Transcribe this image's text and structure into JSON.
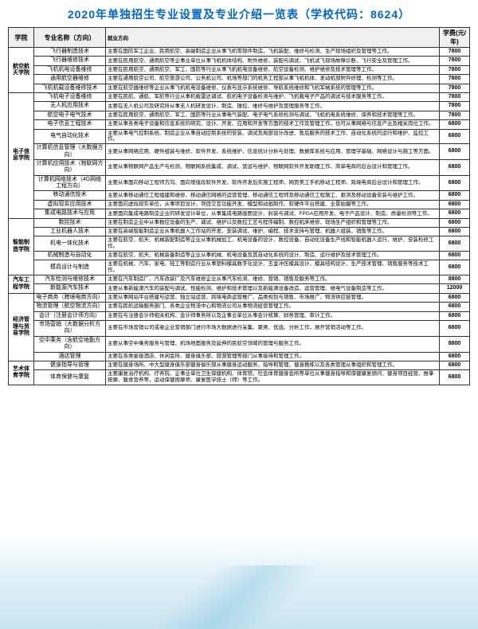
{
  "title": "2020年单独招生专业设置及专业介绍一览表（学校代码：8624）",
  "headers": {
    "college": "学院",
    "major": "专业名称（方向）",
    "desc": "就业方向",
    "fee": "学费(元/年)"
  },
  "colleges": [
    {
      "name": "航空航天学院",
      "rows": [
        {
          "major": "飞行器制造技术",
          "desc": "主要在国防军工企业、民用航空、高端制造企业从事飞机零部件制造，飞机装配、维修与检测、生产现场组织及管理等工作。",
          "fee": "7800"
        },
        {
          "major": "飞行器维修技术",
          "desc": "主要在民用航空、通用航空等企事业单位从事飞机机体结构、附件维修、装配与调试、飞机试飞现场故障诊断、飞行安全及管理工作。",
          "fee": "7800"
        },
        {
          "major": "飞机机电设备维修",
          "desc": "主要在民用航空、通用航空、军工、国防等行业从事飞机机电设备维修、航空设备检测、维护维修及技术管理等工作。",
          "fee": "7800"
        },
        {
          "major": "通用航空器维修",
          "desc": "主要在通用航空公司、航空旅游公司、公务机公司、机场等部门的机务工程部从事飞机机体、发动机部附件修理、检测等工作。",
          "fee": "7800"
        },
        {
          "major": "飞机机载设备维修技术",
          "desc": "主要在航空器维修等企业从事飞机机电设备维修、仪表与显示系统维修、导航系统维修和飞机军械系统的管理等工作。",
          "fee": "7800"
        }
      ]
    },
    {
      "name": "电子信息学院",
      "rows": [
        {
          "major": "飞机电子设备维修",
          "desc": "主要在民航、通航、军航等行业从事机载雷达调试、航机电子设备检测与维护、飞机载电子产品的调试与技术服务等工作。",
          "fee": "7800"
        },
        {
          "major": "无人机应用技术",
          "desc": "主要在无人机公司及研究所从事无人机研发设计、制造、操控、维修与维护及管理服务等工作。",
          "fee": "7800"
        },
        {
          "major": "航空电子电气技术",
          "desc": "主要在民用航空、通用航空、军工、国防等行业从事电气装配、电子电气系统检测与调试、飞机机电系统维修、保养和技术管理等工作。",
          "fee": "7800"
        },
        {
          "major": "电子信息工程技术",
          "desc": "主要从事各类电子设备和信息系统的研究、设计、开发、应用和开发等方面的技术工作及管理工作，也可从事网络与信息产业及相关岗位工作。",
          "fee": "6800"
        },
        {
          "major": "电气自动化技术",
          "desc": "主要从事电气控制系统、制造企业从事自动控制系统的安装、调试及局部设计改进、售后服务的技术工作、自动化系统的运行和维护、监控工作。",
          "fee": "6800"
        },
        {
          "major": "计算机信息管理（大数据方向）",
          "desc": "主要从事网络应用、硬件组装与维修、软件开发、系统维护、信息统计分析与处理、数据库系统与应用、管理学基础、网络设计与施工等方面。",
          "fee": "6800"
        },
        {
          "major": "计算机应用技术（物联网方向）",
          "desc": "主要从事物联网产品生产与检测、物联网系统集成、调试、营运与维护、物联网软件开发助理工作、简单电商的后台设计和管理工作。",
          "fee": "6800"
        },
        {
          "major": "计算机网络技术（4G网络工程方向）",
          "desc": "主要从事面向移动工程师方向、面向增值段软件开发、软件开发后实施工程师、网页美工手机移动工程师、跨境电商后台设计和管理工作。",
          "fee": "6800"
        },
        {
          "major": "移动通信技术",
          "desc": "主要从事移动通信工程组建和维修、移动通信网络的运营管理、移动通信工程师及移动通信工程施工、跟测及移动设备安装与维护工作。",
          "fee": "6800"
        },
        {
          "major": "虚拟现实应用技术",
          "desc": "主要面向虚拟现实单位，从事项目设计、项目交互功能开发、模型和动画制作、软硬件平台搭建、全景拍摄等工作。",
          "fee": "6800"
        },
        {
          "major": "集成电路技术与应用",
          "desc": "主要面向集成电路制造企业的研发设计单位，从事集成电路版图设计、封装与调试、FPGA应用开发、电子产品设计、制造、质量检测等工作。",
          "fee": "6800"
        }
      ]
    },
    {
      "name": "智能制造学院",
      "rows": [
        {
          "major": "数控技术",
          "desc": "主要在制造企业中从事数控设备的生产、调试、维护以及数控工艺与程序编制、数控机床维修、现场生产组织和管理等工作。",
          "fee": "6800"
        },
        {
          "major": "工业机器人技术",
          "desc": "主要在高端智能制造企业从事机器人工作站的开发、安装调试、维护、编程、技术支持与管理、机器人组装、销售等工作。",
          "fee": "6800"
        },
        {
          "major": "机电一体化技术",
          "desc": "主要在航空、航天、机械装配制造等企业从事机械加工、机电设备的设计、数控设备、自动化设备生产线和智能机器人运行、维护、安装检修工作。",
          "fee": "6800"
        },
        {
          "major": "机械制造与自动化",
          "desc": "主要在航空、航天、机械装备制造等企业从事机械、机电设备及其自动化系统的设计、制造、运行维护及技术管理工作。",
          "fee": "6800"
        },
        {
          "major": "模具设计与制造",
          "desc": "主要在机械、汽车、家电、轻工等制造行业从事塑料模具数字化设计、五金冲压模具设计、模具结构设计、生产技术管理、销售服务等技术工作。",
          "fee": "6800"
        }
      ]
    },
    {
      "name": "汽车工程学院",
      "rows": [
        {
          "major": "汽车检测与维修技术",
          "desc": "主要在汽车制造厂、汽车改装厂及汽车维修企业从事汽车检测、维修、营销、销售及服务等工作。",
          "fee": "8800"
        },
        {
          "major": "新能源汽车技术",
          "desc": "主要从事新能源汽车的装配与调试、性能检测、维护和技术管理以及新能源设备改造、运营管理、维电气设备制造等工作。",
          "fee": "12000"
        }
      ]
    },
    {
      "name": "经济管理与贸易学院",
      "rows": [
        {
          "major": "电子商务（跨境电商方向）",
          "desc": "主要从事网站平台搭建与运营、独立站运营、跨境电商运营推广、品类规划与销售、市场推广、物流供应链管理。",
          "fee": "6800"
        },
        {
          "major": "物流管理（航空物流方向）",
          "desc": "主要在民航运输服务部门、各类企业物流中心和物流公司从事物流经营管理工作。",
          "fee": "6800"
        },
        {
          "major": "会计（注册会计师方向）",
          "desc": "主要在与注册会计师相关机构、会计师事务所以及企事业单位从事会计核算、财务管理、审计工作。",
          "fee": "6800"
        },
        {
          "major": "市场营销（大数据分析方向）",
          "desc": "主要在市场营销公司或者企业营销部门进行市场大数据进行采集、聚类、优选、分析工作，展开营销活动等工作。",
          "fee": "6800"
        },
        {
          "major": "空中乘务（含航空地勤方向）",
          "desc": "主要从事空中乘务服务与管理、机场地面服务及延伸的民航空领域的管理与服务工作。",
          "fee": "8800"
        },
        {
          "major": "酒店管理",
          "desc": "主要在各类星级酒店、休闲会所、健身俱乐部、旅游管理等部门从事接待和管理工作。",
          "fee": "6800"
        }
      ]
    },
    {
      "name": "艺术体育学院",
      "rows": [
        {
          "major": "健身指导与管理",
          "desc": "主要在健身场所、中大型健身俱乐部健身俱乐部从事健身运动服务、指导和管理、健身教练以及各类管理从事组织和管理工作。",
          "fee": "6800"
        },
        {
          "major": "体育保健与康复",
          "desc": "主要康复治疗机构、疗养院、企事业单位卫生保健机构、体育馆、社会体育健身会所等单位从事健身指导和保健康复顾问、健身项目经营、推拿按摩、膳食营养等，运动保健按摩师、康复医学技士（师）等工作。",
          "fee": "6800"
        }
      ]
    }
  ]
}
